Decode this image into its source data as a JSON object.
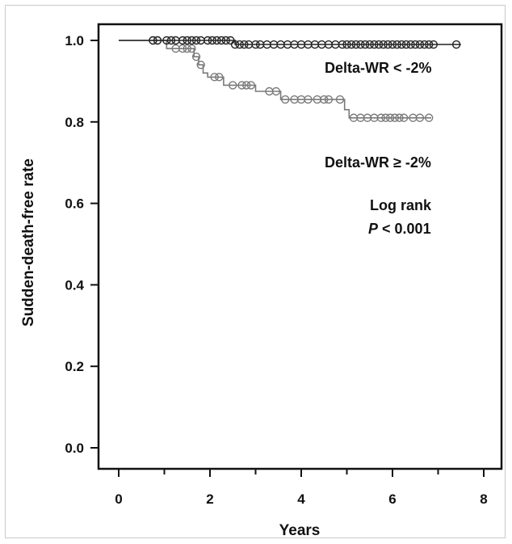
{
  "chart_data": {
    "type": "line",
    "subtype": "kaplan-meier",
    "title": "",
    "xlabel": "Years",
    "ylabel": "Sudden-death-free rate",
    "xlim": [
      0,
      8
    ],
    "ylim": [
      0,
      1.0
    ],
    "xticks": [
      0,
      2,
      4,
      6,
      8
    ],
    "yticks": [
      "0.0",
      "0.2",
      "0.4",
      "0.6",
      "0.8",
      "1.0"
    ],
    "grid": false,
    "series": [
      {
        "name": "Delta-WR < -2%",
        "color": "#222222",
        "steps": [
          [
            0,
            1.0
          ],
          [
            2.55,
            1.0
          ],
          [
            2.55,
            0.99
          ],
          [
            7.5,
            0.99
          ]
        ],
        "censor_x": [
          0.75,
          0.85,
          1.05,
          1.15,
          1.25,
          1.4,
          1.5,
          1.6,
          1.7,
          1.8,
          1.95,
          2.05,
          2.15,
          2.25,
          2.35,
          2.45,
          2.55,
          2.65,
          2.75,
          2.85,
          3.0,
          3.1,
          3.25,
          3.4,
          3.55,
          3.7,
          3.85,
          4.0,
          4.15,
          4.3,
          4.45,
          4.6,
          4.75,
          4.9,
          5.0,
          5.1,
          5.2,
          5.3,
          5.4,
          5.5,
          5.6,
          5.7,
          5.8,
          5.9,
          6.0,
          6.1,
          6.2,
          6.3,
          6.4,
          6.5,
          6.6,
          6.7,
          6.8,
          6.9,
          7.4
        ]
      },
      {
        "name": "Delta-WR ≥ -2%",
        "color": "#7a7a7a",
        "steps": [
          [
            0,
            1.0
          ],
          [
            1.05,
            1.0
          ],
          [
            1.05,
            0.98
          ],
          [
            1.65,
            0.98
          ],
          [
            1.65,
            0.96
          ],
          [
            1.75,
            0.96
          ],
          [
            1.75,
            0.94
          ],
          [
            1.85,
            0.94
          ],
          [
            1.85,
            0.92
          ],
          [
            1.95,
            0.92
          ],
          [
            1.95,
            0.91
          ],
          [
            2.3,
            0.91
          ],
          [
            2.3,
            0.89
          ],
          [
            3.0,
            0.89
          ],
          [
            3.0,
            0.875
          ],
          [
            3.55,
            0.875
          ],
          [
            3.55,
            0.855
          ],
          [
            4.95,
            0.855
          ],
          [
            4.95,
            0.83
          ],
          [
            5.05,
            0.83
          ],
          [
            5.05,
            0.81
          ],
          [
            6.85,
            0.81
          ]
        ],
        "censor_x": [
          0.75,
          0.85,
          1.25,
          1.4,
          1.5,
          1.6,
          1.7,
          1.8,
          2.1,
          2.2,
          2.5,
          2.7,
          2.8,
          2.9,
          3.3,
          3.45,
          3.65,
          3.85,
          4.0,
          4.15,
          4.35,
          4.5,
          4.6,
          4.85,
          5.15,
          5.3,
          5.45,
          5.6,
          5.75,
          5.85,
          5.95,
          6.05,
          6.15,
          6.25,
          6.45,
          6.6,
          6.8
        ]
      }
    ],
    "annotations": {
      "label_a": "Delta-WR < -2%",
      "label_b": "Delta-WR ≥ -2%",
      "stat_title": "Log rank",
      "stat_p_symbol": "P",
      "stat_p_value": " < 0.001"
    }
  }
}
